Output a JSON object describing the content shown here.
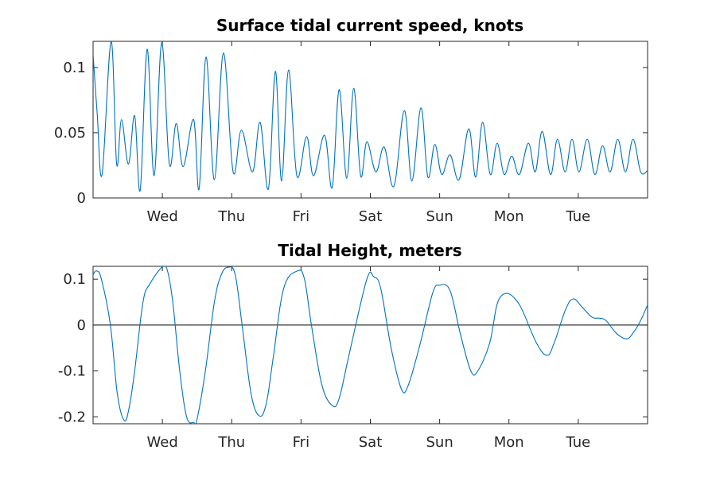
{
  "chart_data": [
    {
      "type": "line",
      "title": "Surface tidal current speed, knots",
      "xlabel": "",
      "ylabel": "",
      "x_unit": "days from first day",
      "xlim": [
        0,
        8
      ],
      "ylim": [
        0,
        0.12
      ],
      "yticks": [
        0,
        0.05,
        0.1
      ],
      "ytick_labels": [
        "0",
        "0.05",
        "0.1"
      ],
      "xticks": [
        1,
        2,
        3,
        4,
        5,
        6,
        7
      ],
      "xtick_labels": [
        "Wed",
        "Thu",
        "Fri",
        "Sat",
        "Sun",
        "Mon",
        "Tue"
      ],
      "grid": false,
      "series": [
        {
          "color": "#0072bd",
          "x": [
            0,
            0.06,
            0.13,
            0.26,
            0.34,
            0.41,
            0.51,
            0.6,
            0.68,
            0.78,
            0.88,
            0.99,
            1.1,
            1.2,
            1.3,
            1.45,
            1.53,
            1.63,
            1.75,
            1.88,
            2.02,
            2.14,
            2.3,
            2.41,
            2.53,
            2.63,
            2.72,
            2.82,
            2.94,
            3.08,
            3.18,
            3.34,
            3.45,
            3.55,
            3.66,
            3.76,
            3.86,
            3.95,
            4.08,
            4.2,
            4.34,
            4.49,
            4.6,
            4.73,
            4.83,
            4.93,
            5.03,
            5.15,
            5.28,
            5.42,
            5.52,
            5.62,
            5.73,
            5.83,
            5.93,
            6.04,
            6.15,
            6.28,
            6.38,
            6.48,
            6.6,
            6.7,
            6.81,
            6.91,
            7.01,
            7.13,
            7.24,
            7.35,
            7.46,
            7.57,
            7.68,
            7.79,
            7.9,
            8.0
          ],
          "y": [
            0.11,
            0.064,
            0.018,
            0.12,
            0.026,
            0.06,
            0.026,
            0.063,
            0.006,
            0.114,
            0.017,
            0.119,
            0.026,
            0.057,
            0.024,
            0.06,
            0.007,
            0.108,
            0.014,
            0.111,
            0.02,
            0.052,
            0.02,
            0.058,
            0.007,
            0.097,
            0.013,
            0.098,
            0.017,
            0.047,
            0.017,
            0.048,
            0.008,
            0.083,
            0.015,
            0.084,
            0.017,
            0.043,
            0.02,
            0.039,
            0.009,
            0.067,
            0.013,
            0.069,
            0.016,
            0.041,
            0.018,
            0.033,
            0.014,
            0.053,
            0.016,
            0.058,
            0.018,
            0.042,
            0.018,
            0.032,
            0.018,
            0.042,
            0.02,
            0.051,
            0.018,
            0.045,
            0.02,
            0.045,
            0.02,
            0.045,
            0.018,
            0.04,
            0.02,
            0.045,
            0.02,
            0.045,
            0.02,
            0.021
          ]
        }
      ]
    },
    {
      "type": "line",
      "title": "Tidal Height, meters",
      "xlabel": "",
      "ylabel": "",
      "x_unit": "days from first day",
      "xlim": [
        0,
        8
      ],
      "ylim": [
        -0.215,
        0.128
      ],
      "yticks": [
        -0.2,
        -0.1,
        0,
        0.1
      ],
      "ytick_labels": [
        "-0.2",
        "-0.1",
        "0",
        "0.1"
      ],
      "xticks": [
        1,
        2,
        3,
        4,
        5,
        6,
        7
      ],
      "xtick_labels": [
        "Wed",
        "Thu",
        "Fri",
        "Sat",
        "Sun",
        "Mon",
        "Tue"
      ],
      "grid": false,
      "zero_line": true,
      "series": [
        {
          "color": "#0072bd",
          "x": [
            0,
            0.05,
            0.12,
            0.25,
            0.35,
            0.45,
            0.52,
            0.6,
            0.72,
            0.82,
            1.0,
            1.07,
            1.15,
            1.25,
            1.35,
            1.45,
            1.5,
            1.62,
            1.75,
            1.85,
            1.95,
            2.05,
            2.15,
            2.28,
            2.4,
            2.5,
            2.6,
            2.75,
            2.95,
            3.05,
            3.15,
            3.3,
            3.45,
            3.55,
            3.7,
            3.95,
            4.05,
            4.15,
            4.3,
            4.45,
            4.55,
            4.72,
            4.9,
            5.0,
            5.15,
            5.3,
            5.45,
            5.55,
            5.72,
            5.82,
            5.9,
            6.0,
            6.1,
            6.2,
            6.4,
            6.55,
            6.65,
            6.82,
            6.93,
            7.05,
            7.2,
            7.3,
            7.4,
            7.55,
            7.7,
            7.8,
            7.9,
            8.0
          ],
          "y": [
            0.11,
            0.118,
            0.1,
            0.0,
            -0.15,
            -0.208,
            -0.18,
            -0.1,
            0.05,
            0.09,
            0.127,
            0.12,
            0.05,
            -0.1,
            -0.2,
            -0.212,
            -0.205,
            -0.1,
            0.05,
            0.11,
            0.126,
            0.11,
            0.0,
            -0.15,
            -0.198,
            -0.17,
            -0.07,
            0.08,
            0.118,
            0.1,
            0.0,
            -0.13,
            -0.175,
            -0.16,
            -0.06,
            0.1,
            0.105,
            0.08,
            -0.05,
            -0.14,
            -0.13,
            -0.04,
            0.07,
            0.087,
            0.075,
            -0.02,
            -0.1,
            -0.1,
            -0.04,
            0.04,
            0.065,
            0.068,
            0.055,
            0.03,
            -0.04,
            -0.066,
            -0.04,
            0.035,
            0.057,
            0.04,
            0.017,
            0.015,
            0.01,
            -0.018,
            -0.03,
            -0.015,
            0.01,
            0.044
          ]
        }
      ]
    }
  ]
}
